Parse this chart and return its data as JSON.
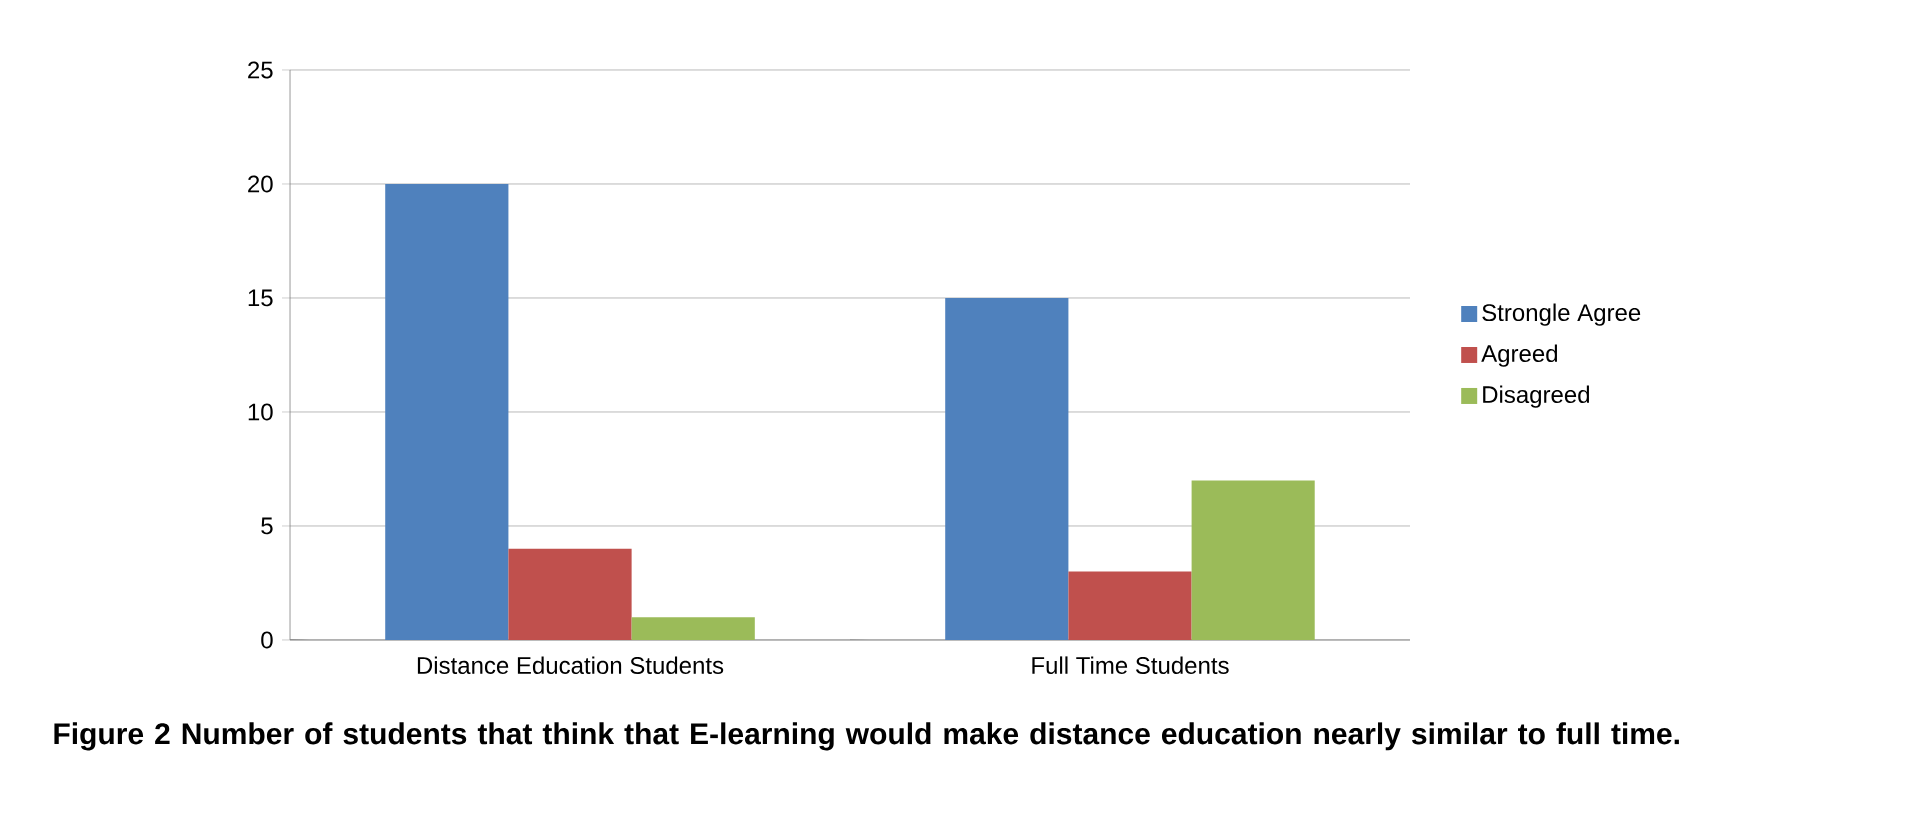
{
  "chart_data": {
    "type": "bar",
    "categories": [
      "Distance Education Students",
      "Full Time Students"
    ],
    "series": [
      {
        "name": "Strongle Agree",
        "color": "#4f81bd",
        "values": [
          20,
          15
        ]
      },
      {
        "name": "Agreed",
        "color": "#c0504d",
        "values": [
          4,
          3
        ]
      },
      {
        "name": "Disagreed",
        "color": "#9bbb59",
        "values": [
          1,
          7
        ]
      }
    ],
    "ylim": [
      0,
      25
    ],
    "yticks": [
      0,
      5,
      10,
      15,
      20,
      25
    ],
    "grid": "y",
    "legend": "right",
    "annotations": [
      "Figure 2 Number of students that think that E-learning would make distance education nearly similar to full time."
    ]
  }
}
